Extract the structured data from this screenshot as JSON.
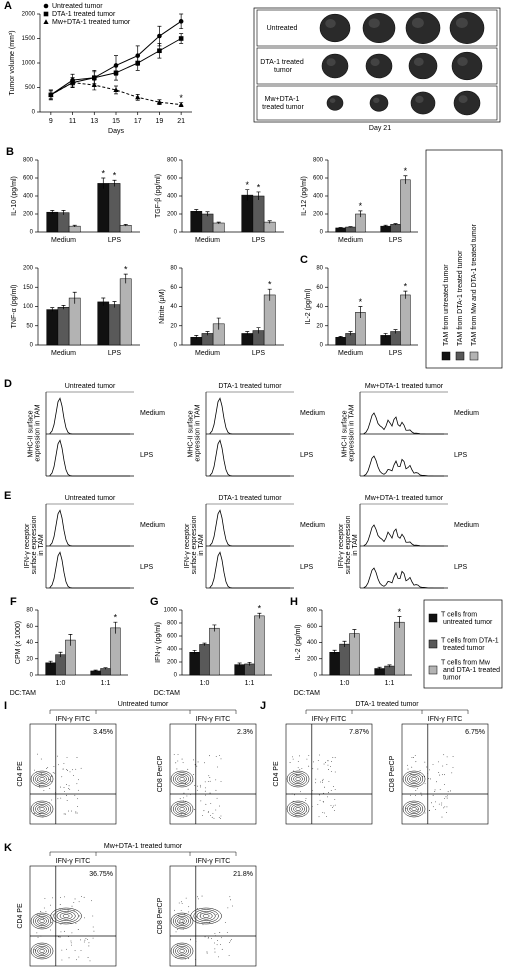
{
  "chart_data": [
    {
      "type": "line",
      "panel": "A",
      "ylabel": "Tumor volume (mm³)",
      "xlabel": "Days",
      "x": [
        9,
        11,
        13,
        15,
        17,
        19,
        21
      ],
      "xlim": [
        8,
        22
      ],
      "xticks": [
        9,
        11,
        13,
        15,
        17,
        19,
        21
      ],
      "ylim": [
        0,
        2000
      ],
      "yticks": [
        0,
        500,
        1000,
        1500,
        2000
      ],
      "series": [
        {
          "name": "Untreated tumor",
          "color": "#000000",
          "marker": "circle",
          "dashed": false,
          "values": [
            350,
            650,
            700,
            950,
            1150,
            1550,
            1850
          ],
          "errors": [
            100,
            120,
            150,
            200,
            200,
            200,
            150
          ],
          "significance": [
            null,
            null,
            null,
            null,
            null,
            null,
            null
          ]
        },
        {
          "name": "DTA-1 treated tumor",
          "color": "#000000",
          "marker": "square",
          "dashed": false,
          "values": [
            350,
            600,
            700,
            800,
            1000,
            1250,
            1500
          ],
          "errors": [
            100,
            100,
            120,
            150,
            150,
            150,
            100
          ],
          "significance": [
            null,
            null,
            null,
            null,
            null,
            null,
            null
          ]
        },
        {
          "name": "Mw+DTA-1 treated tumor",
          "color": "#000000",
          "marker": "triangle",
          "dashed": true,
          "values": [
            350,
            600,
            550,
            450,
            300,
            200,
            150
          ],
          "errors": [
            80,
            100,
            100,
            80,
            60,
            50,
            40
          ],
          "significance": [
            null,
            null,
            null,
            null,
            null,
            null,
            "*"
          ]
        }
      ]
    },
    {
      "type": "bar",
      "panel": "B",
      "ylabel": "IL-10 (pg/ml)",
      "categories": [
        "Medium",
        "LPS"
      ],
      "ylim": [
        0,
        800
      ],
      "yticks": [
        0,
        200,
        400,
        600,
        800
      ],
      "series": [
        {
          "values": [
            220,
            540
          ],
          "errors": [
            20,
            60
          ],
          "significance": [
            null,
            "*"
          ]
        },
        {
          "values": [
            215,
            540
          ],
          "errors": [
            25,
            35
          ],
          "significance": [
            null,
            "*"
          ]
        },
        {
          "values": [
            65,
            75
          ],
          "errors": [
            10,
            10
          ],
          "significance": [
            null,
            null
          ]
        }
      ]
    },
    {
      "type": "bar",
      "ylabel": "TGF-β (pg/ml)",
      "categories": [
        "Medium",
        "LPS"
      ],
      "ylim": [
        0,
        800
      ],
      "yticks": [
        0,
        200,
        400,
        600,
        800
      ],
      "series": [
        {
          "values": [
            230,
            410
          ],
          "errors": [
            20,
            60
          ],
          "significance": [
            null,
            "*"
          ]
        },
        {
          "values": [
            200,
            400
          ],
          "errors": [
            25,
            45
          ],
          "significance": [
            null,
            "*"
          ]
        },
        {
          "values": [
            100,
            110
          ],
          "errors": [
            10,
            15
          ],
          "significance": [
            null,
            null
          ]
        }
      ]
    },
    {
      "type": "bar",
      "ylabel": "IL-12 (pg/ml)",
      "categories": [
        "Medium",
        "LPS"
      ],
      "ylim": [
        0,
        800
      ],
      "yticks": [
        0,
        200,
        400,
        600,
        800
      ],
      "series": [
        {
          "values": [
            45,
            65
          ],
          "errors": [
            5,
            10
          ],
          "significance": [
            null,
            null
          ]
        },
        {
          "values": [
            55,
            85
          ],
          "errors": [
            5,
            8
          ],
          "significance": [
            null,
            null
          ]
        },
        {
          "values": [
            200,
            580
          ],
          "errors": [
            35,
            45
          ],
          "significance": [
            "*",
            "*"
          ]
        }
      ]
    },
    {
      "type": "bar",
      "ylabel": "TNF-α (pg/ml)",
      "categories": [
        "Medium",
        "LPS"
      ],
      "ylim": [
        0,
        200
      ],
      "yticks": [
        0,
        50,
        100,
        150,
        200
      ],
      "series": [
        {
          "values": [
            92,
            112
          ],
          "errors": [
            5,
            10
          ],
          "significance": [
            null,
            null
          ]
        },
        {
          "values": [
            98,
            105
          ],
          "errors": [
            5,
            8
          ],
          "significance": [
            null,
            null
          ]
        },
        {
          "values": [
            122,
            172
          ],
          "errors": [
            15,
            12
          ],
          "significance": [
            null,
            "*"
          ]
        }
      ]
    },
    {
      "type": "bar",
      "ylabel": "Nitrite (μM)",
      "categories": [
        "Medium",
        "LPS"
      ],
      "ylim": [
        0,
        80
      ],
      "yticks": [
        0,
        20,
        40,
        60,
        80
      ],
      "series": [
        {
          "values": [
            8,
            12
          ],
          "errors": [
            2,
            2
          ],
          "significance": [
            null,
            null
          ]
        },
        {
          "values": [
            12,
            15
          ],
          "errors": [
            2,
            3
          ],
          "significance": [
            null,
            null
          ]
        },
        {
          "values": [
            22,
            52
          ],
          "errors": [
            6,
            6
          ],
          "significance": [
            null,
            "*"
          ]
        }
      ]
    },
    {
      "type": "bar",
      "panel": "C",
      "ylabel": "IL-2 (pg/ml)",
      "categories": [
        "Medium",
        "LPS"
      ],
      "ylim": [
        0,
        80
      ],
      "yticks": [
        0,
        20,
        40,
        60,
        80
      ],
      "series": [
        {
          "values": [
            8,
            10
          ],
          "errors": [
            1,
            2
          ],
          "significance": [
            null,
            null
          ]
        },
        {
          "values": [
            12,
            14
          ],
          "errors": [
            2,
            2
          ],
          "significance": [
            null,
            null
          ]
        },
        {
          "values": [
            34,
            52
          ],
          "errors": [
            6,
            4
          ],
          "significance": [
            "*",
            "*"
          ]
        }
      ]
    },
    {
      "type": "bar",
      "panel": "F",
      "ylabel": "CPM (x 1000)",
      "xlabel": "DC:TAM",
      "categories": [
        "1:0",
        "1:1"
      ],
      "ylim": [
        0,
        80
      ],
      "yticks": [
        0,
        20,
        40,
        60,
        80
      ],
      "series": [
        {
          "values": [
            15,
            5
          ],
          "errors": [
            2,
            1
          ],
          "significance": [
            null,
            null
          ]
        },
        {
          "values": [
            25,
            8
          ],
          "errors": [
            3,
            1
          ],
          "significance": [
            null,
            null
          ]
        },
        {
          "values": [
            43,
            58
          ],
          "errors": [
            7,
            7
          ],
          "significance": [
            null,
            "*"
          ]
        }
      ]
    },
    {
      "type": "bar",
      "panel": "G",
      "ylabel": "IFN-γ (pg/ml)",
      "xlabel": "DC:TAM",
      "categories": [
        "1:0",
        "1:1"
      ],
      "ylim": [
        0,
        1000
      ],
      "yticks": [
        0,
        200,
        400,
        600,
        800,
        1000
      ],
      "series": [
        {
          "values": [
            350,
            160
          ],
          "errors": [
            30,
            25
          ],
          "significance": [
            null,
            null
          ]
        },
        {
          "values": [
            470,
            170
          ],
          "errors": [
            20,
            25
          ],
          "significance": [
            null,
            null
          ]
        },
        {
          "values": [
            720,
            910
          ],
          "errors": [
            50,
            40
          ],
          "significance": [
            null,
            "*"
          ]
        }
      ]
    },
    {
      "type": "bar",
      "panel": "H",
      "ylabel": "IL-2 (pg/ml)",
      "xlabel": "DC:TAM",
      "categories": [
        "1:0",
        "1:1"
      ],
      "ylim": [
        0,
        800
      ],
      "yticks": [
        0,
        200,
        400,
        600,
        800
      ],
      "series": [
        {
          "values": [
            280,
            80
          ],
          "errors": [
            25,
            15
          ],
          "significance": [
            null,
            null
          ]
        },
        {
          "values": [
            380,
            110
          ],
          "errors": [
            35,
            15
          ],
          "significance": [
            null,
            null
          ]
        },
        {
          "values": [
            510,
            650
          ],
          "errors": [
            50,
            70
          ],
          "significance": [
            null,
            "*"
          ]
        }
      ]
    }
  ],
  "legends": [
    {
      "items": [
        {
          "name": "TAM from untreated tumor",
          "color": "#111111"
        },
        {
          "name": "TAM from DTA-1 treated tumor",
          "color": "#595959"
        },
        {
          "name": "TAM from Mw and DTA-1 treated tumor",
          "color": "#b3b3b3"
        }
      ]
    },
    {
      "items": [
        {
          "name": "T cells from untreated tumor",
          "color": "#111111"
        },
        {
          "name": "T cells from DTA-1 treated tumor",
          "color": "#595959"
        },
        {
          "name": "T cells from Mw and DTA-1 treated tumor",
          "color": "#b3b3b3"
        }
      ]
    }
  ],
  "tumor_images": {
    "rows": [
      "Untreated",
      "DTA-1 treated tumor",
      "Mw+DTA-1 treated tumor"
    ],
    "caption": "Day 21"
  },
  "histograms": [
    {
      "panel": "D",
      "ylabel": "MHC-II surface expression in TAM",
      "columns": [
        "Untreated tumor",
        "DTA-1 treated tumor",
        "Mw+DTA-1 treated tumor"
      ],
      "rows": [
        "Medium",
        "LPS"
      ]
    },
    {
      "panel": "E",
      "ylabel": "IFN-γ receptor surface expression in TAM",
      "columns": [
        "Untreated tumor",
        "DTA-1 treated tumor",
        "Mw+DTA-1 treated tumor"
      ],
      "rows": [
        "Medium",
        "LPS"
      ]
    }
  ],
  "flow_plots": [
    {
      "panel": "I",
      "title": "Untreated tumor",
      "plots": [
        {
          "x": "IFN-γ FITC",
          "y": "CD4 PE",
          "percent": "3.45%"
        },
        {
          "x": "IFN-γ FITC",
          "y": "CD8 PerCP",
          "percent": "2.3%"
        }
      ]
    },
    {
      "panel": "J",
      "title": "DTA-1 treated tumor",
      "plots": [
        {
          "x": "IFN-γ FITC",
          "y": "CD4 PE",
          "percent": "7.87%"
        },
        {
          "x": "IFN-γ FITC",
          "y": "CD8 PerCP",
          "percent": "6.75%"
        }
      ]
    },
    {
      "panel": "K",
      "title": "Mw+DTA-1 treated tumor",
      "plots": [
        {
          "x": "IFN-γ FITC",
          "y": "CD4 PE",
          "percent": "36.75%"
        },
        {
          "x": "IFN-γ FITC",
          "y": "CD8 PerCP",
          "percent": "21.8%"
        }
      ]
    }
  ]
}
